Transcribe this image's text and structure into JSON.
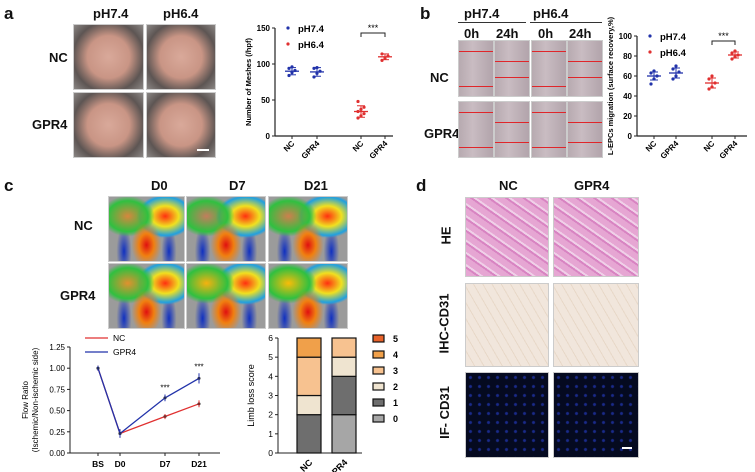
{
  "panels": {
    "a": "a",
    "b": "b",
    "c": "c",
    "d": "d"
  },
  "a": {
    "col_labels": [
      "pH7.4",
      "pH6.4"
    ],
    "row_labels": [
      "NC",
      "GPR4"
    ]
  },
  "b": {
    "col_labels": [
      "pH7.4",
      "pH6.4"
    ],
    "time_labels": [
      "0h",
      "24h",
      "0h",
      "24h"
    ],
    "row_labels": [
      "NC",
      "GPR4"
    ]
  },
  "c": {
    "col_labels": [
      "D0",
      "D7",
      "D21"
    ],
    "row_labels": [
      "NC",
      "GPR4"
    ]
  },
  "d": {
    "col_labels": [
      "NC",
      "GPR4"
    ],
    "row_labels": [
      "HE",
      "IHC-CD31",
      "IF- CD31"
    ]
  },
  "colors": {
    "blue": "#2233aa",
    "red": "#e03030"
  },
  "chart_data": [
    {
      "type": "scatter",
      "id": "a",
      "ylabel": "Number of Meshes (/hpf)",
      "ylim": [
        0,
        150
      ],
      "yticks": [
        0,
        50,
        100,
        150
      ],
      "categories": [
        "NC",
        "GPR4",
        "NC",
        "GPR4"
      ],
      "legend": [
        "pH7.4",
        "pH6.4"
      ],
      "series_of_category": [
        0,
        0,
        1,
        1
      ],
      "means": [
        90,
        89,
        34,
        110
      ],
      "sd": [
        5,
        6,
        8,
        4
      ],
      "points": [
        [
          84,
          88,
          91,
          94,
          96
        ],
        [
          82,
          87,
          90,
          94,
          95
        ],
        [
          25,
          28,
          31,
          34,
          37,
          40,
          48
        ],
        [
          105,
          108,
          111,
          114
        ]
      ],
      "annotation": "***"
    },
    {
      "type": "scatter",
      "id": "b",
      "ylabel": "L-EPCs migration (surface recovery,%)",
      "ylim": [
        0,
        100
      ],
      "yticks": [
        0,
        20,
        40,
        60,
        80,
        100
      ],
      "categories": [
        "NC",
        "GPR4",
        "NC",
        "GPR4"
      ],
      "legend": [
        "pH7.4",
        "pH6.4"
      ],
      "series_of_category": [
        0,
        0,
        1,
        1
      ],
      "means": [
        60,
        63,
        53,
        81
      ],
      "sd": [
        4,
        5,
        5,
        3
      ],
      "points": [
        [
          52,
          57,
          60,
          63,
          65
        ],
        [
          57,
          60,
          64,
          67,
          70
        ],
        [
          47,
          49,
          53,
          57,
          60
        ],
        [
          77,
          79,
          81,
          83,
          85
        ]
      ],
      "annotation": "***"
    },
    {
      "type": "line",
      "id": "c",
      "ylabel": "Flow Ratio (Ischemic/Non-ischemic side)",
      "ylim": [
        0,
        1.25
      ],
      "yticks": [
        "0.00",
        "0.25",
        "0.50",
        "0.75",
        "1.00",
        "1.25"
      ],
      "x": [
        "BS",
        "D0",
        "D7",
        "D21"
      ],
      "series": [
        {
          "name": "NC",
          "values": [
            1.0,
            0.23,
            0.43,
            0.58
          ],
          "err": [
            0.03,
            0.05,
            0.03,
            0.04
          ]
        },
        {
          "name": "GPR4",
          "values": [
            1.0,
            0.23,
            0.65,
            0.88
          ],
          "err": [
            0.03,
            0.05,
            0.04,
            0.06
          ]
        }
      ],
      "annotations": [
        "",
        "",
        "***",
        "***"
      ]
    },
    {
      "type": "bar",
      "id": "c2",
      "stacked": true,
      "ylabel": "Limb loss score",
      "ylim": [
        0,
        6
      ],
      "yticks": [
        0,
        1,
        2,
        3,
        4,
        5,
        6
      ],
      "categories": [
        "NC",
        "GPR4"
      ],
      "legend": [
        "5",
        "4",
        "3",
        "2",
        "1",
        "0"
      ],
      "score_colors": {
        "5": "#e8622a",
        "4": "#f0a04a",
        "3": "#f7c290",
        "2": "#efe4d0",
        "1": "#6e6e6e",
        "0": "#a6a6a6"
      },
      "stacks": [
        [
          {
            "score": "1",
            "value": 2
          },
          {
            "score": "2",
            "value": 1
          },
          {
            "score": "3",
            "value": 2
          },
          {
            "score": "4",
            "value": 1
          }
        ],
        [
          {
            "score": "0",
            "value": 2
          },
          {
            "score": "1",
            "value": 2
          },
          {
            "score": "2",
            "value": 1
          },
          {
            "score": "3",
            "value": 1
          }
        ]
      ]
    }
  ]
}
